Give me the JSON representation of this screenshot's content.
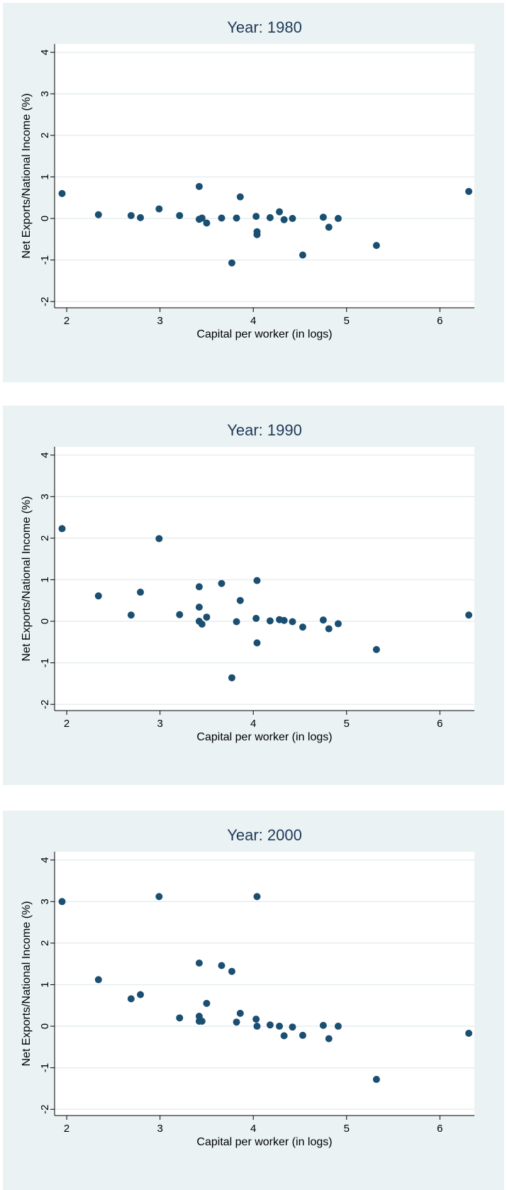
{
  "chart_data": [
    {
      "type": "scatter",
      "title": "Year: 1980",
      "xlabel": "Capital per worker (in logs)",
      "ylabel": "Net Exports/National Income (%)",
      "xlim": [
        1.87,
        6.37
      ],
      "ylim": [
        -2.15,
        4.2
      ],
      "xticks": [
        "2",
        "3",
        "4",
        "5",
        "6"
      ],
      "yticks": [
        "-2",
        "-1",
        "0",
        "1",
        "2",
        "3",
        "4"
      ],
      "grid": "horizontal",
      "marker_color": "#1b4f72",
      "points": [
        [
          1.95,
          0.6
        ],
        [
          2.34,
          0.09
        ],
        [
          2.69,
          0.07
        ],
        [
          2.79,
          0.02
        ],
        [
          2.99,
          0.23
        ],
        [
          3.21,
          0.07
        ],
        [
          3.42,
          0.77
        ],
        [
          3.42,
          -0.02
        ],
        [
          3.45,
          0.01
        ],
        [
          3.5,
          -0.11
        ],
        [
          3.66,
          0.01
        ],
        [
          3.77,
          -1.07
        ],
        [
          3.82,
          0.01
        ],
        [
          3.86,
          0.52
        ],
        [
          4.03,
          0.05
        ],
        [
          4.04,
          -0.32
        ],
        [
          4.04,
          -0.39
        ],
        [
          4.18,
          0.02
        ],
        [
          4.28,
          0.16
        ],
        [
          4.33,
          -0.03
        ],
        [
          4.42,
          0.0
        ],
        [
          4.53,
          -0.88
        ],
        [
          4.75,
          0.03
        ],
        [
          4.81,
          -0.21
        ],
        [
          4.91,
          0.0
        ],
        [
          5.32,
          -0.65
        ],
        [
          6.31,
          0.65
        ]
      ]
    },
    {
      "type": "scatter",
      "title": "Year: 1990",
      "xlabel": "Capital per worker (in logs)",
      "ylabel": "Net Exports/National Income (%)",
      "xlim": [
        1.87,
        6.37
      ],
      "ylim": [
        -2.15,
        4.2
      ],
      "xticks": [
        "2",
        "3",
        "4",
        "5",
        "6"
      ],
      "yticks": [
        "-2",
        "-1",
        "0",
        "1",
        "2",
        "3",
        "4"
      ],
      "grid": "horizontal",
      "marker_color": "#1b4f72",
      "points": [
        [
          1.95,
          2.23
        ],
        [
          2.34,
          0.61
        ],
        [
          2.69,
          0.15
        ],
        [
          2.79,
          0.7
        ],
        [
          2.99,
          1.99
        ],
        [
          3.21,
          0.16
        ],
        [
          3.42,
          0.83
        ],
        [
          3.42,
          0.34
        ],
        [
          3.42,
          0.0
        ],
        [
          3.45,
          -0.07
        ],
        [
          3.5,
          0.1
        ],
        [
          3.66,
          0.91
        ],
        [
          3.77,
          -1.36
        ],
        [
          3.82,
          -0.01
        ],
        [
          3.86,
          0.5
        ],
        [
          4.03,
          0.07
        ],
        [
          4.04,
          0.98
        ],
        [
          4.04,
          -0.52
        ],
        [
          4.18,
          0.01
        ],
        [
          4.28,
          0.04
        ],
        [
          4.33,
          0.02
        ],
        [
          4.42,
          -0.01
        ],
        [
          4.53,
          -0.14
        ],
        [
          4.75,
          0.03
        ],
        [
          4.81,
          -0.18
        ],
        [
          4.91,
          -0.06
        ],
        [
          5.32,
          -0.68
        ],
        [
          6.31,
          0.15
        ]
      ]
    },
    {
      "type": "scatter",
      "title": "Year: 2000",
      "xlabel": "Capital per worker (in logs)",
      "ylabel": "Net Exports/National Income (%)",
      "xlim": [
        1.87,
        6.37
      ],
      "ylim": [
        -2.15,
        4.2
      ],
      "xticks": [
        "2",
        "3",
        "4",
        "5",
        "6"
      ],
      "yticks": [
        "-2",
        "-1",
        "0",
        "1",
        "2",
        "3",
        "4"
      ],
      "grid": "horizontal",
      "marker_color": "#1b4f72",
      "points": [
        [
          1.95,
          3.0
        ],
        [
          2.34,
          1.12
        ],
        [
          2.69,
          0.66
        ],
        [
          2.79,
          0.76
        ],
        [
          2.99,
          3.12
        ],
        [
          3.21,
          0.2
        ],
        [
          3.42,
          1.52
        ],
        [
          3.42,
          0.24
        ],
        [
          3.42,
          0.12
        ],
        [
          3.45,
          0.12
        ],
        [
          3.5,
          0.55
        ],
        [
          3.66,
          1.46
        ],
        [
          3.77,
          1.32
        ],
        [
          3.82,
          0.1
        ],
        [
          3.86,
          0.31
        ],
        [
          4.03,
          0.17
        ],
        [
          4.04,
          3.12
        ],
        [
          4.04,
          0.0
        ],
        [
          4.18,
          0.03
        ],
        [
          4.28,
          0.0
        ],
        [
          4.33,
          -0.23
        ],
        [
          4.42,
          -0.02
        ],
        [
          4.53,
          -0.22
        ],
        [
          4.75,
          0.02
        ],
        [
          4.81,
          -0.3
        ],
        [
          4.91,
          0.0
        ],
        [
          5.32,
          -1.28
        ],
        [
          6.31,
          -0.17
        ]
      ]
    }
  ]
}
